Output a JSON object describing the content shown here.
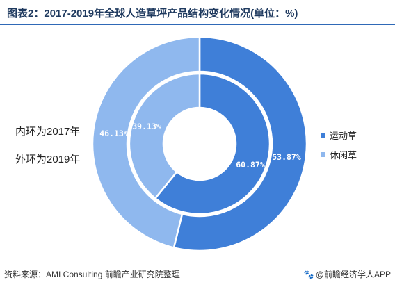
{
  "title": "图表2：2017-2019年全球人造草坪产品结构变化情况(单位：%)",
  "inner_ring_label": "内环为2017年",
  "outer_ring_label": "外环为2019年",
  "source": "资料来源：AMI Consulting 前瞻产业研究院整理",
  "brand": "@前瞻经济学人APP",
  "brand_icon": "paw-icon",
  "colors": {
    "sport": "#3f7fd8",
    "leisure": "#8fb8ee",
    "title_rule": "#2f69b7"
  },
  "chart_data": {
    "type": "pie",
    "variant": "donut-two-ring",
    "categories": [
      "运动草",
      "休闲草"
    ],
    "series": [
      {
        "name": "2017年",
        "ring": "inner",
        "values": [
          60.87,
          39.13
        ],
        "labels": [
          "60.87%",
          "39.13%"
        ]
      },
      {
        "name": "2019年",
        "ring": "outer",
        "values": [
          53.87,
          46.13
        ],
        "labels": [
          "53.87%",
          "46.13%"
        ]
      }
    ],
    "legend": {
      "position": "right",
      "entries": [
        "运动草",
        "休闲草"
      ]
    }
  }
}
